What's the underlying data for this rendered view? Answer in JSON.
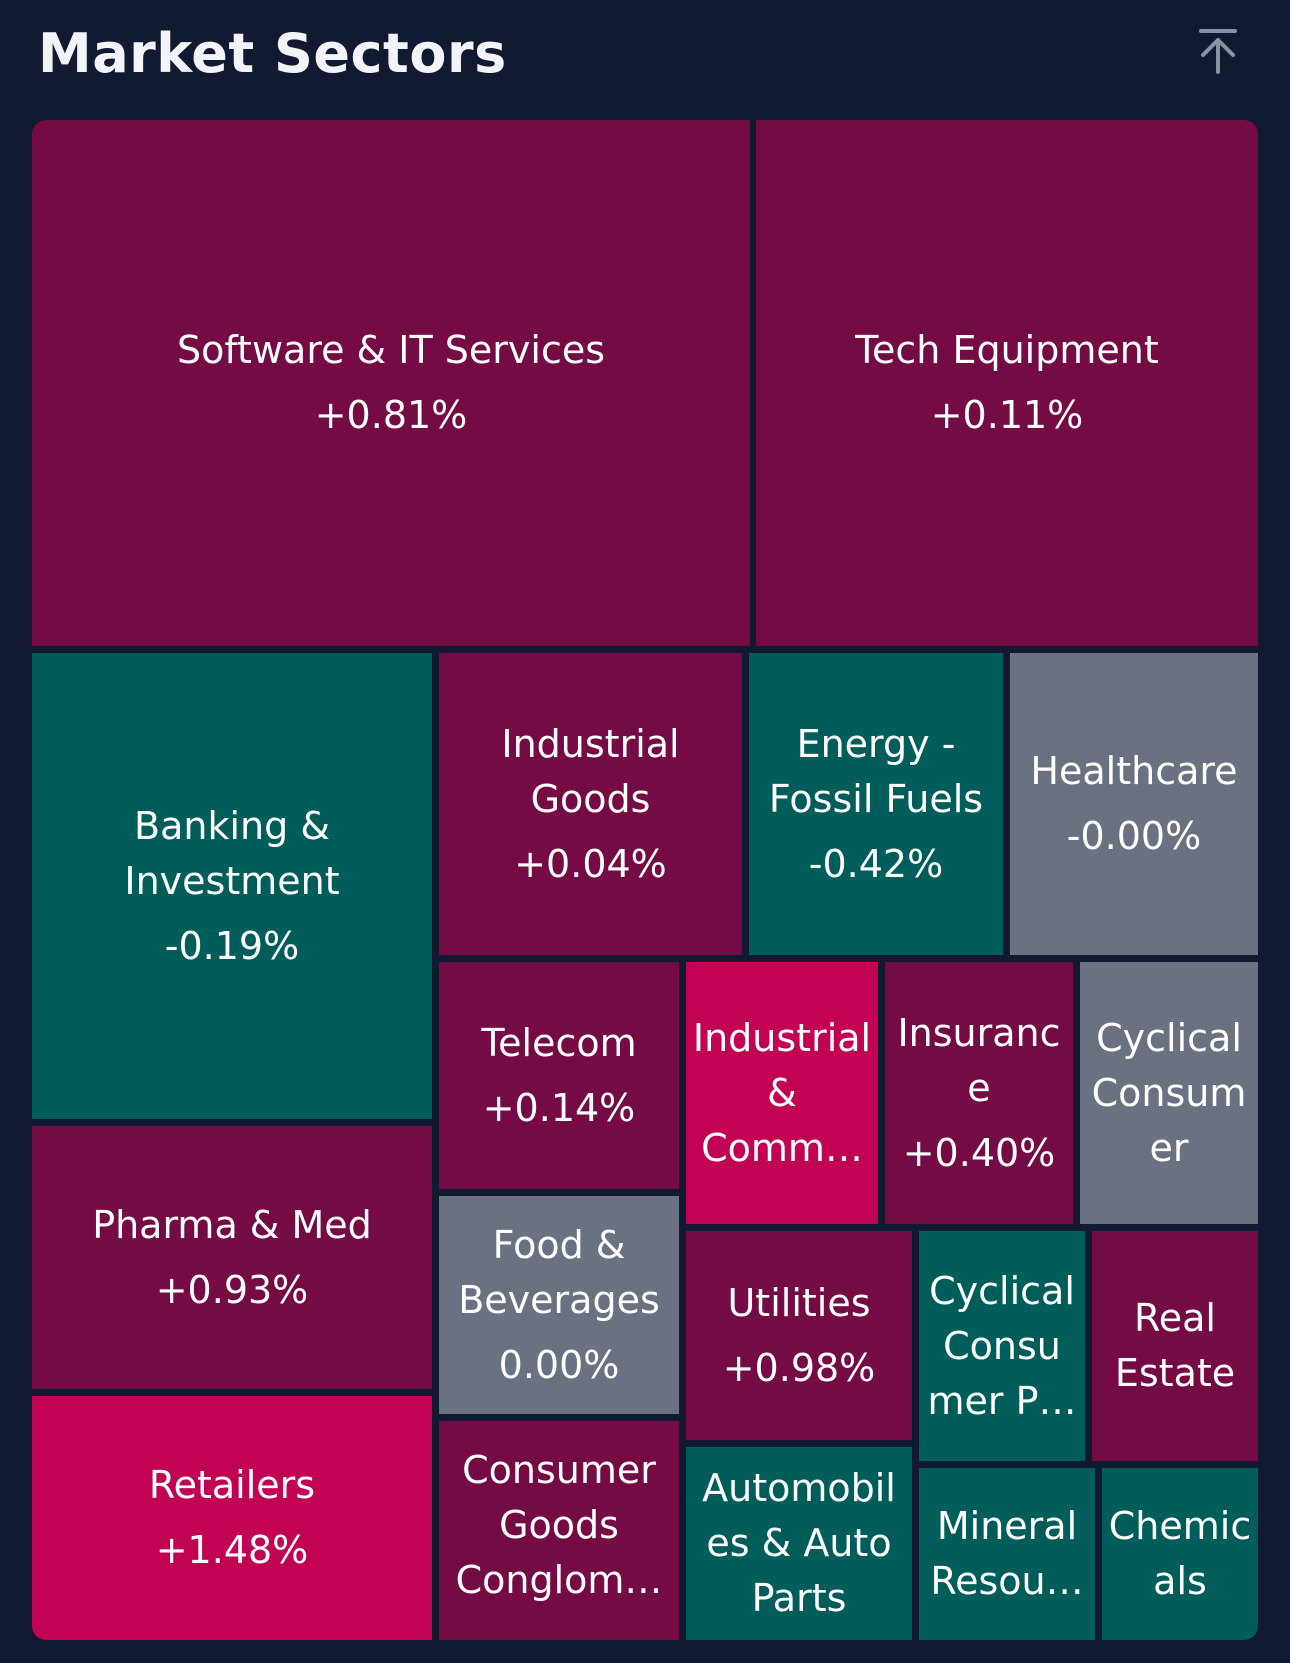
{
  "header": {
    "title": "Market Sectors",
    "scroll_top_icon": "arrow-up-to-line-icon"
  },
  "colors": {
    "background": "#121a31",
    "positive": "#740b44",
    "strong_positive": "#c20353",
    "negative": "#005d5a",
    "neutral": "#6a7180"
  },
  "sectors": [
    {
      "name": "Software & IT Services",
      "change": "+0.81%"
    },
    {
      "name": "Tech Equipment",
      "change": "+0.11%"
    },
    {
      "name": "Banking &\nInvestment",
      "change": "-0.19%"
    },
    {
      "name": "Industrial\nGoods",
      "change": "+0.04%"
    },
    {
      "name": "Energy -\nFossil Fuels",
      "change": "-0.42%"
    },
    {
      "name": "Healthcare",
      "change": "-0.00%"
    },
    {
      "name": "Telecom",
      "change": "+0.14%"
    },
    {
      "name": "Industrial\n&\nComm…",
      "change": ""
    },
    {
      "name": "Insuranc\ne",
      "change": "+0.40%"
    },
    {
      "name": "Cyclical\nConsum\ner",
      "change": ""
    },
    {
      "name": "Pharma & Med",
      "change": "+0.93%"
    },
    {
      "name": "Food &\nBeverages",
      "change": "0.00%"
    },
    {
      "name": "Utilities",
      "change": "+0.98%"
    },
    {
      "name": "Cyclical\nConsu\nmer P…",
      "change": ""
    },
    {
      "name": "Real\nEstate",
      "change": ""
    },
    {
      "name": "Retailers",
      "change": "+1.48%"
    },
    {
      "name": "Consumer\nGoods\nConglom…",
      "change": ""
    },
    {
      "name": "Automobil\nes & Auto\nParts",
      "change": ""
    },
    {
      "name": "Mineral\nResou…",
      "change": ""
    },
    {
      "name": "Chemic\nals",
      "change": ""
    }
  ]
}
